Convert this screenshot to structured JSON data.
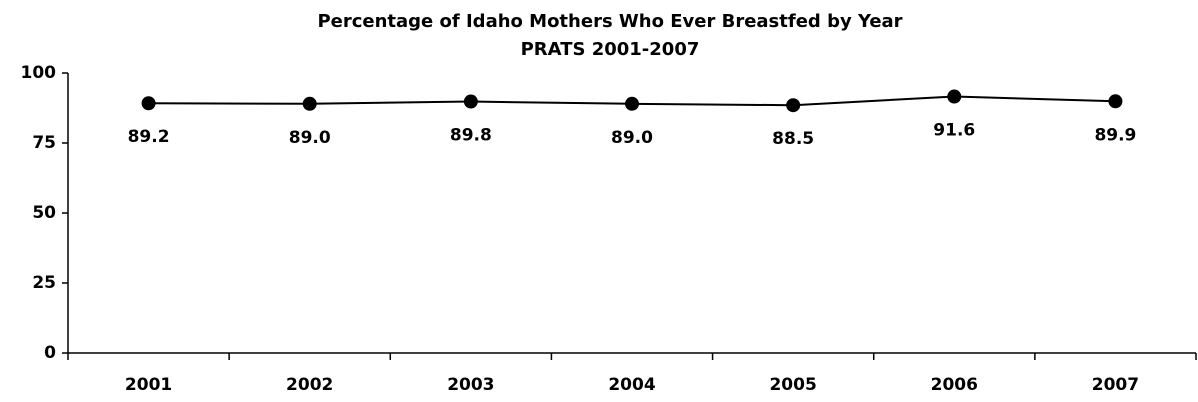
{
  "chart_data": {
    "type": "line",
    "title": "Percentage of Idaho Mothers Who Ever Breastfed by Year",
    "subtitle": "PRATS 2001-2007",
    "categories": [
      "2001",
      "2002",
      "2003",
      "2004",
      "2005",
      "2006",
      "2007"
    ],
    "values": [
      89.2,
      89.0,
      89.8,
      89.0,
      88.5,
      91.6,
      89.9
    ],
    "value_labels": [
      "89.2",
      "89.0",
      "89.8",
      "89.0",
      "88.5",
      "91.6",
      "89.9"
    ],
    "color": "#000000",
    "ylim": [
      0,
      100
    ],
    "yticks": [
      0,
      25,
      50,
      75,
      100
    ],
    "grid": false
  }
}
